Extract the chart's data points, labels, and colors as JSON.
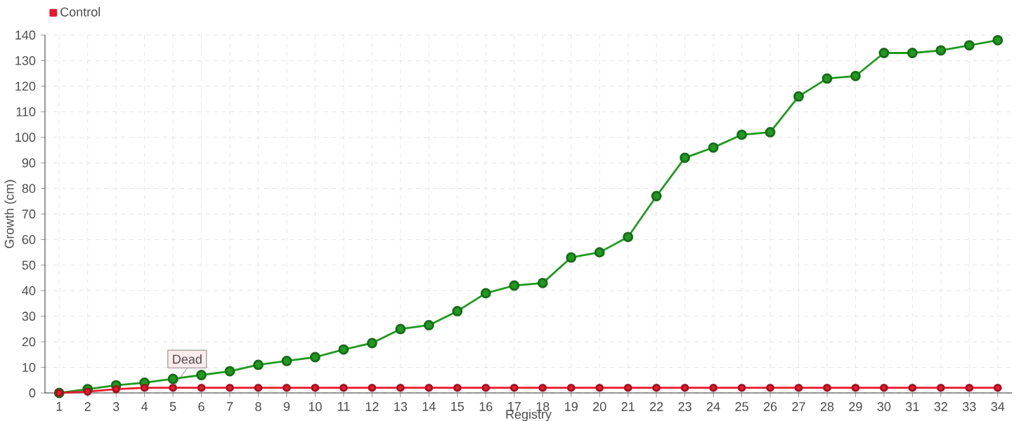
{
  "chart_data": {
    "type": "line",
    "xlabel": "Registry",
    "ylabel": "Growth (cm)",
    "categories": [
      "1",
      "2",
      "3",
      "4",
      "5",
      "6",
      "7",
      "8",
      "9",
      "10",
      "11",
      "12",
      "13",
      "14",
      "15",
      "16",
      "17",
      "18",
      "19",
      "20",
      "21",
      "22",
      "23",
      "24",
      "25",
      "26",
      "27",
      "28",
      "29",
      "30",
      "31",
      "32",
      "33",
      "34"
    ],
    "series": [
      {
        "color": "#1f9a1f",
        "values": [
          0,
          1.5,
          3,
          4,
          5.5,
          7,
          8.5,
          11,
          12.5,
          14,
          17,
          19.5,
          25,
          26.5,
          32,
          39,
          42,
          43,
          53,
          55,
          61,
          77,
          92,
          96,
          101,
          102,
          116,
          123,
          124,
          133,
          133,
          134,
          136,
          138
        ]
      },
      {
        "name": "Control",
        "color": "#e8192c",
        "values": [
          0,
          0.5,
          1.5,
          2,
          2,
          2,
          2,
          2,
          2,
          2,
          2,
          2,
          2,
          2,
          2,
          2,
          2,
          2,
          2,
          2,
          2,
          2,
          2,
          2,
          2,
          2,
          2,
          2,
          2,
          2,
          2,
          2,
          2,
          2
        ]
      }
    ],
    "ylim": [
      0,
      140
    ],
    "yticks": [
      0,
      10,
      20,
      30,
      40,
      50,
      60,
      70,
      80,
      90,
      100,
      110,
      120,
      130,
      140
    ],
    "grid": true,
    "legend": "top left",
    "marker": "circle",
    "line_style": "solid",
    "annotations": [
      {
        "text": "Dead",
        "x": "5",
        "y": 2
      }
    ]
  }
}
